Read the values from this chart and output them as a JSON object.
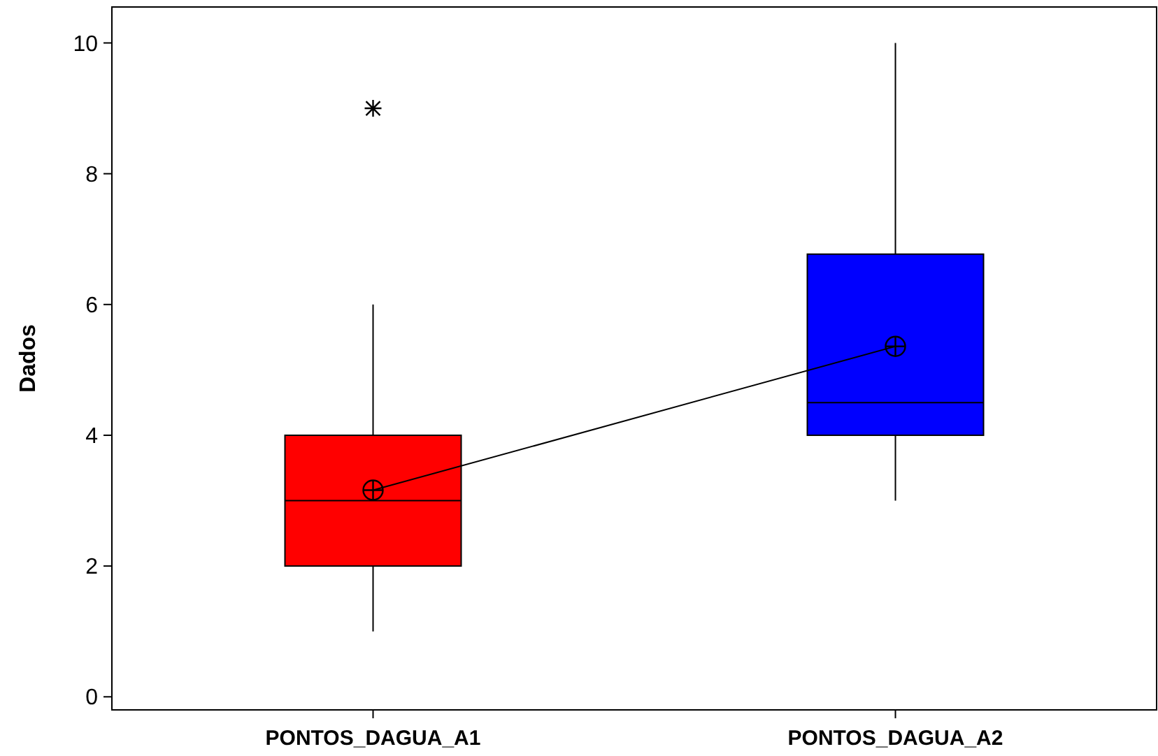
{
  "chart_data": {
    "type": "box",
    "ylabel": "Dados",
    "categories": [
      "PONTOS_DAGUA_A1",
      "PONTOS_DAGUA_A2"
    ],
    "series": [
      {
        "colors": [
          "#ff0000",
          "#0000ff"
        ],
        "boxes": [
          {
            "low": 1,
            "q1": 2,
            "median": 3,
            "q3": 4,
            "high": 6,
            "outliers": [
              9
            ]
          },
          {
            "low": 3,
            "q1": 4,
            "median": 4.5,
            "q3": 6.77,
            "high": 10
          }
        ]
      },
      {
        "type": "line",
        "color": "#000000",
        "x": [
          "PONTOS_DAGUA_A1",
          "PONTOS_DAGUA_A2"
        ],
        "values": [
          3.16,
          5.36
        ],
        "marker": "circle"
      }
    ],
    "ylim": [
      -0.2,
      10.55
    ],
    "yticks": [
      0,
      2,
      4,
      6,
      8,
      10
    ],
    "grid": false
  }
}
